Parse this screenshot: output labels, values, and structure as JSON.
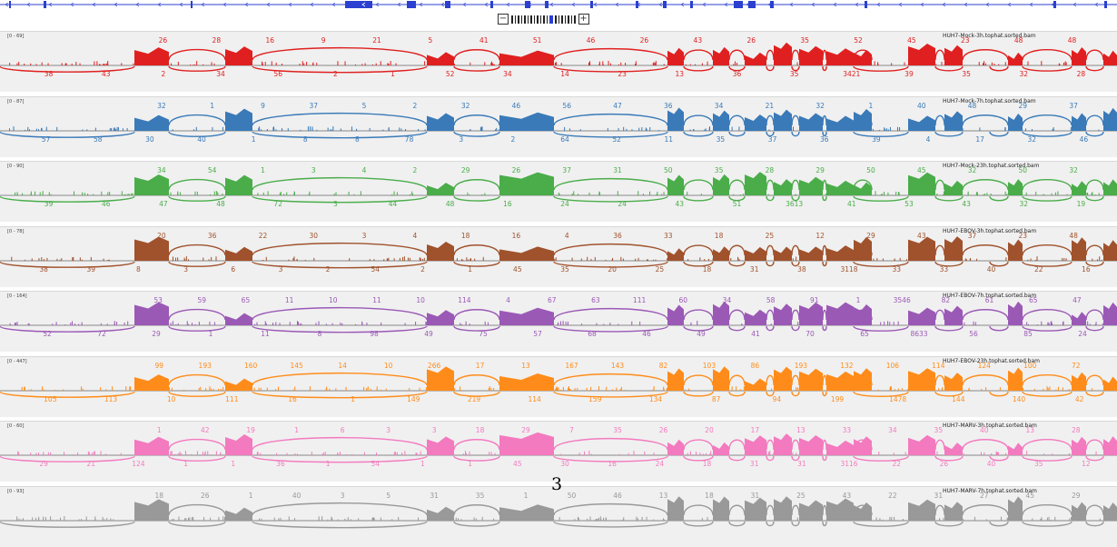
{
  "page_number": "3",
  "colors": {
    "gene": "#2b40d0",
    "tracks": [
      "#e02020",
      "#3a7ab8",
      "#4aad4a",
      "#a0522d",
      "#9b59b6",
      "#ff8c1a",
      "#f37abf",
      "#999999"
    ]
  },
  "tracks": [
    {
      "range": "[0 - 69]",
      "file": "HUH7-Mock-3h.tophat.sorted.bam",
      "top": [
        "26",
        "28",
        "16",
        "9",
        "21",
        "5",
        "41",
        "51",
        "46",
        "26",
        "43",
        "26",
        "35",
        "52",
        "45",
        "23",
        "48",
        "48"
      ],
      "bottom": [
        "38",
        "43",
        "2",
        "34",
        "56",
        "2",
        "1",
        "52",
        "34",
        "14",
        "23",
        "13",
        "36",
        "35",
        "3421",
        "39",
        "35",
        "32",
        "28"
      ]
    },
    {
      "range": "[0 - 87]",
      "file": "HUH7-Mock-7h.tophat.sorted.bam",
      "top": [
        "32",
        "1",
        "9",
        "37",
        "5",
        "2",
        "32",
        "46",
        "56",
        "47",
        "36",
        "34",
        "21",
        "32",
        "1",
        "40",
        "48",
        "29",
        "37"
      ],
      "bottom": [
        "57",
        "58",
        "30",
        "40",
        "1",
        "8",
        "8",
        "78",
        "3",
        "2",
        "64",
        "52",
        "11",
        "35",
        "37",
        "36",
        "39",
        "4",
        "17",
        "32",
        "46"
      ]
    },
    {
      "range": "[0 - 90]",
      "file": "HUH7-Mock-23h.tophat.sorted.bam",
      "top": [
        "34",
        "54",
        "1",
        "3",
        "4",
        "2",
        "29",
        "26",
        "37",
        "31",
        "50",
        "35",
        "28",
        "29",
        "50",
        "45",
        "32",
        "50",
        "32"
      ],
      "bottom": [
        "39",
        "46",
        "47",
        "48",
        "72",
        "3",
        "44",
        "48",
        "16",
        "24",
        "24",
        "43",
        "51",
        "3613",
        "41",
        "53",
        "43",
        "32",
        "19"
      ]
    },
    {
      "range": "[0 - 78]",
      "file": "HUH7-EBOV-3h.tophat.sorted.bam",
      "top": [
        "20",
        "36",
        "22",
        "30",
        "3",
        "4",
        "18",
        "16",
        "4",
        "36",
        "33",
        "18",
        "25",
        "12",
        "29",
        "43",
        "37",
        "23",
        "48"
      ],
      "bottom": [
        "38",
        "39",
        "8",
        "3",
        "6",
        "3",
        "2",
        "54",
        "2",
        "1",
        "45",
        "35",
        "20",
        "25",
        "18",
        "31",
        "38",
        "3118",
        "33",
        "33",
        "40",
        "22",
        "16"
      ]
    },
    {
      "range": "[0 - 164]",
      "file": "HUH7-EBOV-7h.tophat.sorted.bam",
      "top": [
        "53",
        "59",
        "65",
        "11",
        "10",
        "11",
        "10",
        "114",
        "4",
        "67",
        "63",
        "111",
        "60",
        "34",
        "58",
        "91",
        "1",
        "3546",
        "82",
        "61",
        "65",
        "47"
      ],
      "bottom": [
        "52",
        "72",
        "29",
        "1",
        "11",
        "8",
        "98",
        "49",
        "75",
        "57",
        "68",
        "46",
        "49",
        "41",
        "70",
        "65",
        "8633",
        "56",
        "85",
        "24"
      ]
    },
    {
      "range": "[0 - 447]",
      "file": "HUH7-EBOV-23h.tophat.sorted.bam",
      "top": [
        "99",
        "193",
        "160",
        "145",
        "14",
        "10",
        "266",
        "17",
        "13",
        "167",
        "143",
        "82",
        "103",
        "86",
        "193",
        "132",
        "106",
        "114",
        "124",
        "100",
        "72"
      ],
      "bottom": [
        "105",
        "113",
        "10",
        "111",
        "16",
        "1",
        "149",
        "219",
        "114",
        "159",
        "134",
        "87",
        "94",
        "199",
        "1478",
        "144",
        "140",
        "42"
      ]
    },
    {
      "range": "[0 - 60]",
      "file": "HUH7-MARV-3h.tophat.sorted.bam",
      "top": [
        "1",
        "42",
        "19",
        "1",
        "6",
        "3",
        "3",
        "18",
        "29",
        "7",
        "35",
        "26",
        "20",
        "17",
        "13",
        "33",
        "34",
        "35",
        "40",
        "13",
        "28"
      ],
      "bottom": [
        "29",
        "21",
        "124",
        "1",
        "1",
        "36",
        "1",
        "54",
        "1",
        "1",
        "45",
        "30",
        "16",
        "24",
        "18",
        "31",
        "31",
        "3116",
        "22",
        "26",
        "40",
        "35",
        "12"
      ]
    },
    {
      "range": "[0 - 93]",
      "file": "HUH7-MARV-7h.tophat.sorted.bam",
      "top": [
        "18",
        "26",
        "1",
        "40",
        "3",
        "5",
        "31",
        "35",
        "1",
        "50",
        "46",
        "13",
        "18",
        "31",
        "25",
        "43",
        "22",
        "31",
        "27",
        "45",
        "29"
      ],
      "bottom": []
    }
  ]
}
